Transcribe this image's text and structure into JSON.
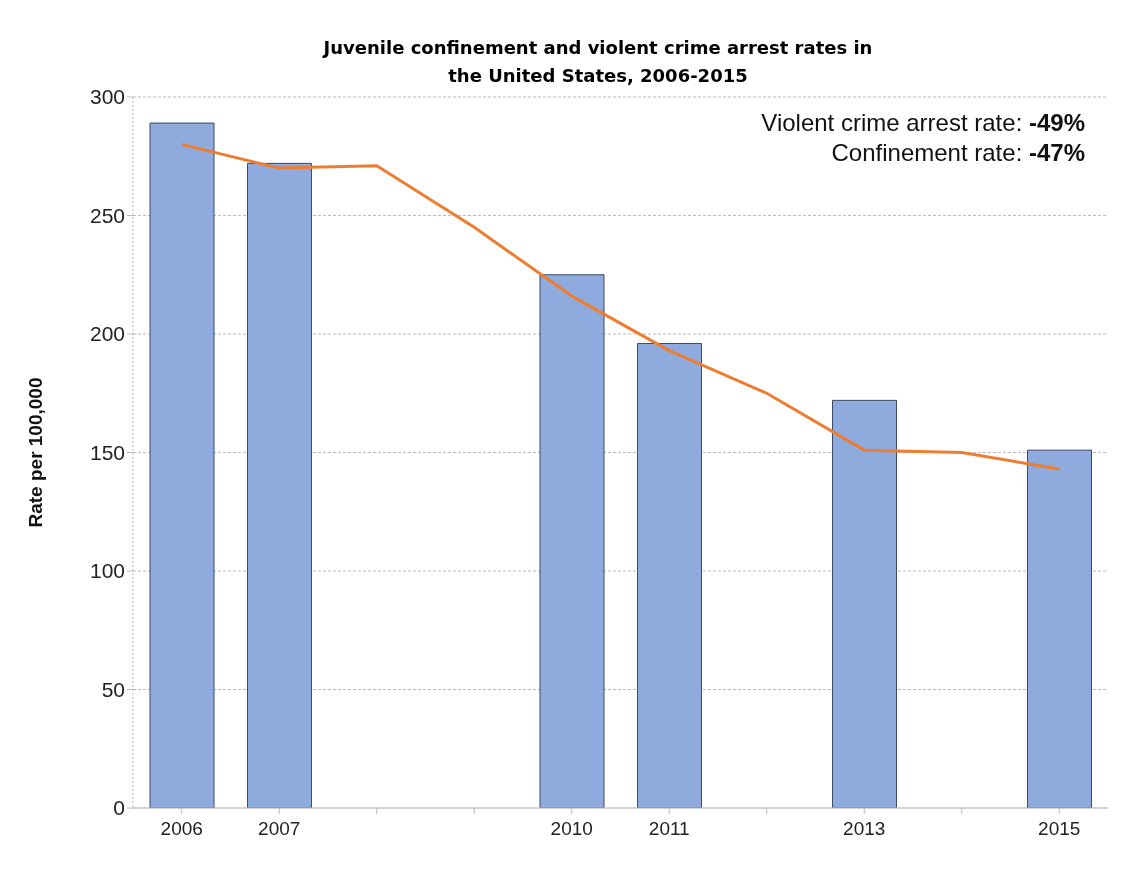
{
  "chart_data": {
    "type": "bar",
    "title": "Juvenile confinement and violent crime arrest rates in the United States, 2006-2015",
    "ylabel": "Rate per 100,000",
    "categories": [
      "2006",
      "2007",
      null,
      null,
      "2010",
      "2011",
      null,
      "2013",
      null,
      "2015"
    ],
    "series": [
      {
        "color": "#8faadc",
        "values": [
          289,
          272,
          null,
          null,
          225,
          196,
          null,
          172,
          null,
          151
        ]
      },
      {
        "type": "line",
        "color": "#ed7d31",
        "values": [
          280,
          270,
          271,
          245,
          216,
          193,
          175,
          151,
          150,
          143
        ]
      }
    ],
    "ylim": [
      0,
      300
    ],
    "yticks": [
      0,
      50,
      100,
      150,
      200,
      250,
      300
    ],
    "grid": "y",
    "legend": false,
    "marker": "none",
    "line_style": "solid",
    "annotations": [
      "Violent crime arrest rate: -49%",
      "Confinement rate: -47%"
    ]
  }
}
